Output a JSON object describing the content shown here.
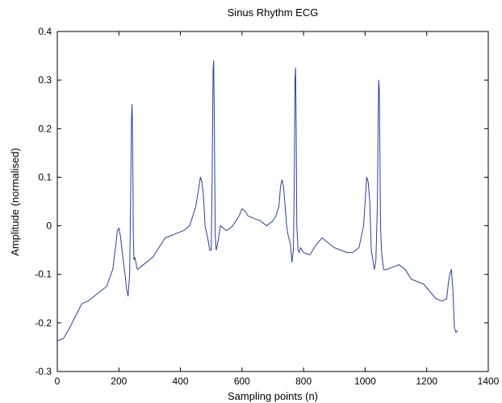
{
  "chart_data": {
    "type": "line",
    "title": "Sinus Rhythm ECG",
    "xlabel": "Sampling points (n)",
    "ylabel": "Amplitude (normalised)",
    "xlim": [
      0,
      1400
    ],
    "ylim": [
      -0.3,
      0.4
    ],
    "xticks": [
      0,
      200,
      400,
      600,
      800,
      1000,
      1200,
      1400
    ],
    "yticks": [
      -0.3,
      -0.2,
      -0.1,
      0,
      0.1,
      0.2,
      0.3,
      0.4
    ],
    "xtick_labels": [
      "0",
      "200",
      "400",
      "600",
      "800",
      "1000",
      "1200",
      "1400"
    ],
    "ytick_labels": [
      "-0.3",
      "-0.2",
      "-0.1",
      "0",
      "0.1",
      "0.2",
      "0.3",
      "0.4"
    ],
    "grid": false,
    "line_color": "#2b3f9e",
    "series": [
      {
        "x": [
          0,
          20,
          40,
          60,
          80,
          100,
          120,
          140,
          160,
          180,
          190,
          195,
          200,
          205,
          210,
          220,
          225,
          230,
          235,
          238,
          241,
          243,
          245,
          247,
          249,
          252,
          255,
          260,
          270,
          290,
          310,
          330,
          350,
          370,
          390,
          410,
          430,
          440,
          450,
          460,
          465,
          470,
          475,
          480,
          490,
          495,
          500,
          503,
          506,
          508,
          510,
          513,
          516,
          520,
          530,
          550,
          570,
          590,
          600,
          610,
          620,
          640,
          660,
          680,
          700,
          710,
          720,
          725,
          730,
          735,
          740,
          745,
          750,
          758,
          762,
          767,
          770,
          772,
          774,
          776,
          778,
          782,
          786,
          790,
          800,
          820,
          840,
          860,
          880,
          900,
          920,
          940,
          960,
          980,
          995,
          1000,
          1005,
          1010,
          1015,
          1020,
          1025,
          1030,
          1035,
          1040,
          1042,
          1044,
          1046,
          1048,
          1050,
          1053,
          1056,
          1060,
          1070,
          1090,
          1110,
          1130,
          1150,
          1170,
          1190,
          1210,
          1230,
          1250,
          1265,
          1270,
          1275,
          1280,
          1285,
          1290,
          1295,
          1300
        ],
        "y": [
          -0.237,
          -0.232,
          -0.21,
          -0.185,
          -0.16,
          -0.155,
          -0.145,
          -0.135,
          -0.125,
          -0.09,
          -0.04,
          -0.01,
          -0.005,
          -0.02,
          -0.05,
          -0.1,
          -0.13,
          -0.145,
          -0.1,
          0.05,
          0.22,
          0.25,
          0.16,
          -0.02,
          -0.07,
          -0.065,
          -0.075,
          -0.09,
          -0.085,
          -0.075,
          -0.065,
          -0.045,
          -0.025,
          -0.02,
          -0.015,
          -0.01,
          0.0,
          0.02,
          0.04,
          0.08,
          0.1,
          0.09,
          0.06,
          0.0,
          -0.03,
          -0.05,
          -0.05,
          0.1,
          0.32,
          0.34,
          0.22,
          -0.02,
          -0.05,
          -0.04,
          0.0,
          -0.01,
          0.0,
          0.02,
          0.035,
          0.03,
          0.02,
          0.015,
          0.01,
          0.0,
          0.01,
          0.02,
          0.04,
          0.08,
          0.095,
          0.08,
          0.04,
          0.0,
          -0.02,
          -0.04,
          -0.075,
          -0.05,
          0.1,
          0.3,
          0.325,
          0.2,
          0.0,
          -0.05,
          -0.055,
          -0.045,
          -0.055,
          -0.06,
          -0.04,
          -0.025,
          -0.035,
          -0.045,
          -0.05,
          -0.055,
          -0.055,
          -0.045,
          0.0,
          0.05,
          0.1,
          0.09,
          0.05,
          -0.05,
          -0.07,
          -0.09,
          -0.07,
          0.05,
          0.2,
          0.3,
          0.28,
          0.15,
          0.0,
          -0.05,
          -0.07,
          -0.09,
          -0.09,
          -0.085,
          -0.08,
          -0.09,
          -0.11,
          -0.115,
          -0.12,
          -0.135,
          -0.15,
          -0.155,
          -0.15,
          -0.12,
          -0.1,
          -0.09,
          -0.13,
          -0.21,
          -0.22,
          -0.215
        ]
      }
    ]
  }
}
